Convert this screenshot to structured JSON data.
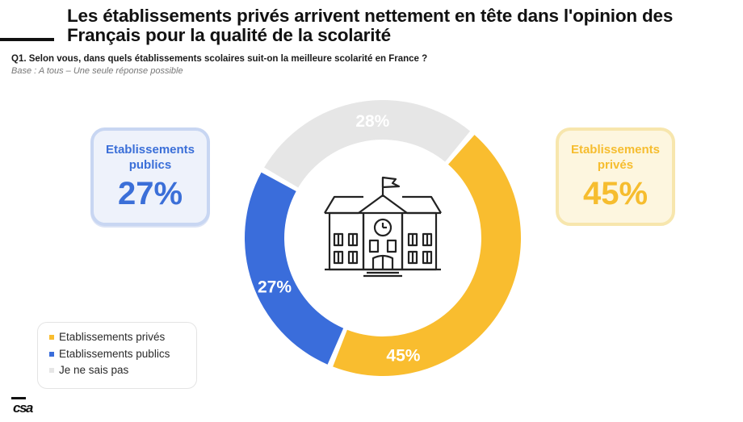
{
  "header": {
    "title": "Les établissements privés arrivent nettement en tête dans l'opinion des Français pour la qualité de la scolarité",
    "question": "Q1. Selon vous, dans quels établissements scolaires suit-on la meilleure scolarité en France ?",
    "base": "Base : A tous – Une seule réponse possible"
  },
  "cards": {
    "public": {
      "label": "Etablissements publics",
      "value": "27%"
    },
    "private": {
      "label": "Etablissements privés",
      "value": "45%"
    }
  },
  "legend": [
    {
      "label": "Etablissements privés",
      "color": "#f9bd2f"
    },
    {
      "label": "Etablissements publics",
      "color": "#3a6ddb"
    },
    {
      "label": "Je ne sais pas",
      "color": "#e6e6e6"
    }
  ],
  "chart_data": {
    "type": "pie",
    "categories": [
      "Etablissements privés",
      "Etablissements publics",
      "Je ne sais pas"
    ],
    "values": [
      45,
      27,
      28
    ],
    "labels": [
      "45%",
      "27%",
      "28%"
    ],
    "colors": [
      "#f9bd2f",
      "#3a6ddb",
      "#e6e6e6"
    ],
    "label_colors": [
      "#ffffff",
      "#ffffff",
      "#ffffff"
    ],
    "legend_position": "bottom-left"
  },
  "center_icon": "school-building-icon",
  "logo": "csa"
}
